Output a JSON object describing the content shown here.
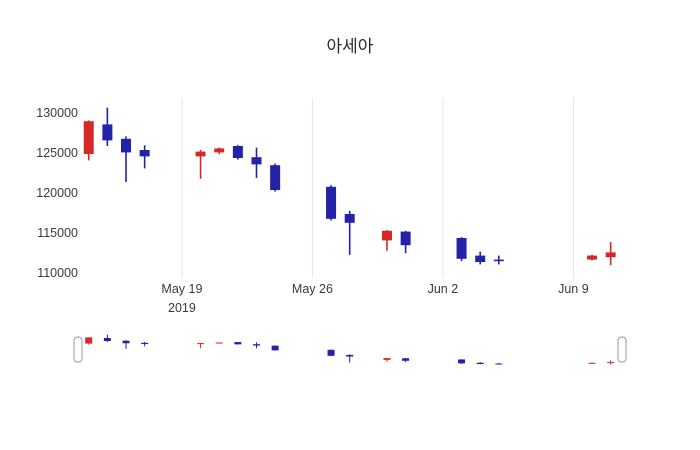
{
  "chart_data": {
    "type": "candlestick",
    "title": "아세아",
    "legend": "none",
    "grid": "vertical",
    "rangeslider": true,
    "y_ticks": [
      "130000",
      "125000",
      "120000",
      "115000",
      "110000"
    ],
    "y_tick_values": [
      130000,
      125000,
      120000,
      115000,
      110000
    ],
    "ylim": [
      109400,
      131900
    ],
    "x_ticks": [
      {
        "label": "May 19",
        "sublabel": "2019",
        "day": 6
      },
      {
        "label": "May 26",
        "day": 13
      },
      {
        "label": "Jun 2",
        "day": 20
      },
      {
        "label": "Jun 9",
        "day": 27
      }
    ],
    "xlim_days": [
      0.8,
      29.5
    ],
    "colors": {
      "increasing": "#d62828",
      "decreasing": "#2323a8",
      "grid": "#e4e4e4",
      "tick_text": "#3a3a3a",
      "title_text": "#2a2a2a",
      "handle_border": "#999999"
    },
    "candles": [
      {
        "date": "May 14",
        "day": 1,
        "open": 124900,
        "high": 129100,
        "low": 124100,
        "close": 129000
      },
      {
        "date": "May 15",
        "day": 2,
        "open": 128600,
        "high": 130700,
        "low": 125900,
        "close": 126600
      },
      {
        "date": "May 16",
        "day": 3,
        "open": 126800,
        "high": 127100,
        "low": 121400,
        "close": 125100
      },
      {
        "date": "May 17",
        "day": 4,
        "open": 125400,
        "high": 126000,
        "low": 123100,
        "close": 124600
      },
      {
        "date": "May 20",
        "day": 7,
        "open": 124600,
        "high": 125400,
        "low": 121800,
        "close": 125200
      },
      {
        "date": "May 21",
        "day": 8,
        "open": 125100,
        "high": 125700,
        "low": 124900,
        "close": 125600
      },
      {
        "date": "May 22",
        "day": 9,
        "open": 125900,
        "high": 126000,
        "low": 124200,
        "close": 124400
      },
      {
        "date": "May 23",
        "day": 10,
        "open": 124500,
        "high": 125700,
        "low": 121900,
        "close": 123600
      },
      {
        "date": "May 24",
        "day": 11,
        "open": 123500,
        "high": 123700,
        "low": 120200,
        "close": 120400
      },
      {
        "date": "May 27",
        "day": 14,
        "open": 120800,
        "high": 121000,
        "low": 116600,
        "close": 116800
      },
      {
        "date": "May 28",
        "day": 15,
        "open": 117400,
        "high": 117800,
        "low": 112300,
        "close": 116300
      },
      {
        "date": "May 30",
        "day": 17,
        "open": 114100,
        "high": 115400,
        "low": 112800,
        "close": 115300
      },
      {
        "date": "May 31",
        "day": 18,
        "open": 115200,
        "high": 115300,
        "low": 112500,
        "close": 113500
      },
      {
        "date": "Jun 3",
        "day": 21,
        "open": 114400,
        "high": 114500,
        "low": 111500,
        "close": 111800
      },
      {
        "date": "Jun 4",
        "day": 22,
        "open": 112200,
        "high": 112700,
        "low": 111100,
        "close": 111400
      },
      {
        "date": "Jun 5",
        "day": 23,
        "open": 111700,
        "high": 112200,
        "low": 111100,
        "close": 111500
      },
      {
        "date": "Jun 10",
        "day": 28,
        "open": 111700,
        "high": 112300,
        "low": 111600,
        "close": 112200
      },
      {
        "date": "Jun 11",
        "day": 29,
        "open": 112000,
        "high": 113900,
        "low": 111000,
        "close": 112600
      }
    ]
  }
}
